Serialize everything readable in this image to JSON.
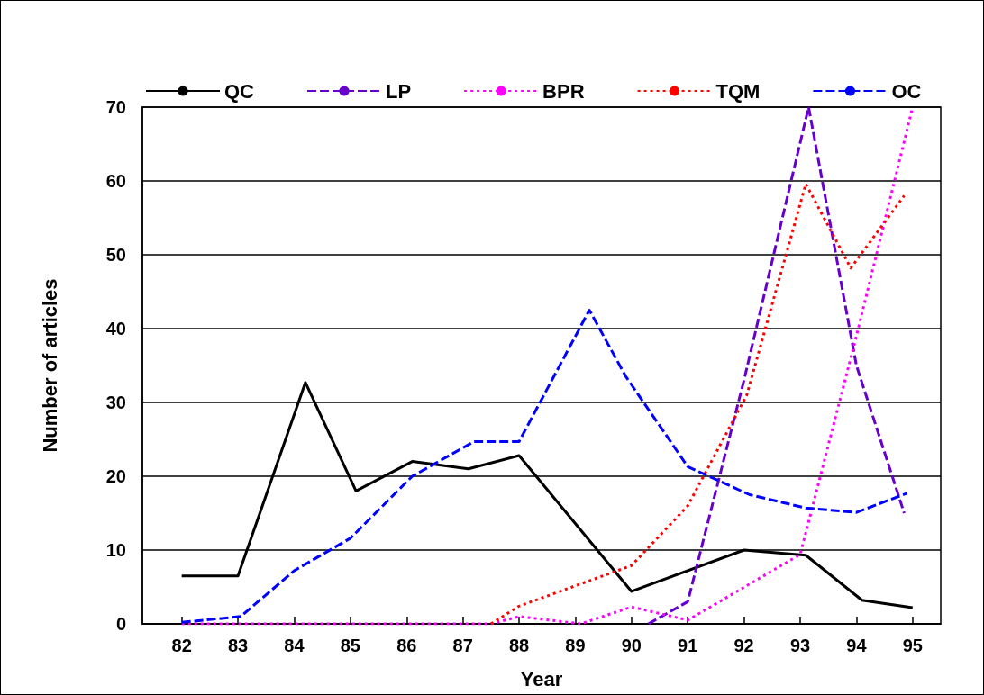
{
  "chart_data": {
    "type": "line",
    "xlabel": "Year",
    "ylabel": "Number of articles",
    "xlim": [
      81.3,
      95.5
    ],
    "xticks": [
      82,
      83,
      84,
      85,
      86,
      87,
      88,
      89,
      90,
      91,
      92,
      93,
      94,
      95
    ],
    "ylim": [
      0,
      70
    ],
    "yticks": [
      0,
      10,
      20,
      30,
      40,
      50,
      60,
      70
    ],
    "grid": "y",
    "legend": "top",
    "marker": "none",
    "series": [
      {
        "name": "QC",
        "color": "#000000",
        "line_style": "solid",
        "x": [
          82,
          83,
          84.2,
          85.1,
          86.1,
          87.1,
          88,
          90,
          92,
          93.1,
          94.1,
          95
        ],
        "values": [
          6.5,
          6.5,
          32.7,
          18,
          22,
          21,
          22.8,
          4.4,
          10,
          9.3,
          3.2,
          2.2
        ]
      },
      {
        "name": "LP",
        "color": "#6600cc",
        "line_style": "dashed",
        "x": [
          90.3,
          91,
          92,
          93.15,
          94,
          94.85
        ],
        "values": [
          0,
          3,
          33,
          70,
          35,
          15
        ]
      },
      {
        "name": "BPR",
        "color": "#ff00ff",
        "line_style": "dotted",
        "x": [
          82,
          83,
          84,
          85,
          86,
          87,
          87.5,
          88,
          89.1,
          90,
          91,
          93,
          94,
          95
        ],
        "values": [
          0,
          0,
          0,
          0,
          0,
          0,
          0,
          1,
          0,
          2.3,
          0.5,
          9.4,
          39,
          70
        ]
      },
      {
        "name": "TQM",
        "color": "#ff0000",
        "line_style": "dotted",
        "x": [
          87.5,
          88,
          90,
          91,
          92.05,
          93.1,
          93.9,
          94.85
        ],
        "values": [
          0,
          2.4,
          7.9,
          16,
          31,
          59.6,
          48.2,
          58
        ]
      },
      {
        "name": "OC",
        "color": "#0000ff",
        "line_style": "dashed",
        "x": [
          82,
          83.05,
          84,
          85,
          86.1,
          87.2,
          88,
          89.25,
          89.9,
          91,
          92.1,
          93.1,
          94,
          94.9
        ],
        "values": [
          0.2,
          1,
          7.2,
          11.6,
          20,
          24.7,
          24.7,
          42.5,
          33.5,
          21.3,
          17.5,
          15.7,
          15.1,
          17.7
        ]
      }
    ]
  }
}
